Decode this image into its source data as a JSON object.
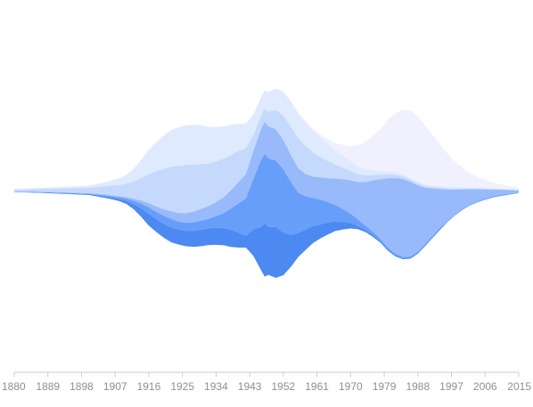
{
  "chart_data": {
    "type": "area",
    "subtype": "streamgraph",
    "x_tick_labels": [
      "1880",
      "1889",
      "1898",
      "1907",
      "1916",
      "1925",
      "1934",
      "1943",
      "1952",
      "1961",
      "1970",
      "1979",
      "1988",
      "1997",
      "2006",
      "2015"
    ],
    "xlim": [
      1880,
      2015
    ],
    "x": [
      1880,
      1890,
      1900,
      1905,
      1908,
      1910,
      1912,
      1914,
      1916,
      1918,
      1920,
      1922,
      1924,
      1926,
      1928,
      1930,
      1932,
      1934,
      1936,
      1938,
      1940,
      1942,
      1944,
      1946,
      1947,
      1948,
      1950,
      1952,
      1954,
      1956,
      1958,
      1960,
      1962,
      1964,
      1966,
      1968,
      1970,
      1972,
      1974,
      1976,
      1978,
      1980,
      1982,
      1984,
      1986,
      1988,
      1990,
      1992,
      1994,
      1996,
      1998,
      2000,
      2002,
      2004,
      2006,
      2008,
      2010,
      2012,
      2015
    ],
    "legend": "none",
    "grid": false,
    "colors": [
      "#3d7fef",
      "#5a96f8",
      "#8fb4fb",
      "#c0d6fd",
      "#dce8ff",
      "#efefff"
    ],
    "series": [
      {
        "values": [
          0.5,
          1,
          1.5,
          3,
          4,
          6,
          10,
          16,
          22,
          24,
          26,
          28,
          28,
          29,
          30,
          31,
          31,
          32,
          32,
          32,
          28,
          22,
          50,
          80,
          100,
          90,
          95,
          80,
          60,
          45,
          38,
          32,
          26,
          22,
          18,
          14,
          10,
          6,
          4,
          4,
          3,
          3,
          2,
          2,
          2,
          2,
          2,
          2,
          2,
          1,
          1,
          1,
          1,
          1,
          1,
          1,
          1,
          1,
          0.5
        ]
      },
      {
        "values": [
          0.5,
          1,
          1,
          2,
          3,
          4,
          6,
          9,
          12,
          14,
          15,
          16,
          15,
          15,
          16,
          17,
          18,
          22,
          28,
          40,
          55,
          70,
          95,
          125,
          130,
          128,
          125,
          118,
          100,
          75,
          62,
          52,
          46,
          38,
          30,
          24,
          18,
          12,
          8,
          6,
          4,
          3,
          3,
          2,
          2,
          2,
          2,
          2,
          2,
          1,
          1,
          1,
          1,
          1,
          1,
          1,
          1,
          1,
          0.5
        ]
      },
      {
        "values": [
          0.5,
          1,
          1,
          2,
          2,
          3,
          4,
          6,
          8,
          10,
          12,
          14,
          16,
          18,
          20,
          22,
          24,
          26,
          30,
          34,
          40,
          46,
          52,
          58,
          60,
          60,
          58,
          55,
          50,
          46,
          42,
          40,
          42,
          45,
          50,
          56,
          62,
          70,
          82,
          96,
          112,
          130,
          142,
          146,
          140,
          124,
          105,
          88,
          72,
          58,
          46,
          36,
          28,
          22,
          17,
          13,
          10,
          7,
          4
        ]
      },
      {
        "values": [
          3,
          6,
          10,
          16,
          21,
          25,
          32,
          42,
          55,
          66,
          76,
          84,
          88,
          90,
          88,
          84,
          80,
          76,
          72,
          66,
          58,
          48,
          30,
          25,
          25,
          28,
          36,
          46,
          54,
          56,
          52,
          45,
          38,
          32,
          26,
          22,
          18,
          15,
          12,
          10,
          8,
          7,
          6,
          5,
          4,
          4,
          3,
          3,
          3,
          3,
          2,
          2,
          2,
          2,
          2,
          1,
          1,
          1,
          1
        ]
      },
      {
        "values": [
          1,
          2,
          4,
          8,
          12,
          16,
          24,
          34,
          45,
          54,
          62,
          68,
          72,
          74,
          74,
          72,
          68,
          64,
          60,
          56,
          50,
          45,
          38,
          34,
          34,
          36,
          40,
          44,
          46,
          46,
          44,
          40,
          36,
          32,
          26,
          22,
          18,
          14,
          11,
          9,
          7,
          6,
          5,
          4,
          3,
          3,
          3,
          2,
          2,
          2,
          2,
          2,
          1,
          1,
          1,
          1,
          1,
          1,
          0.5
        ]
      },
      {
        "values": [
          0.5,
          0.5,
          0.5,
          0.5,
          0.5,
          0.5,
          0.5,
          0.5,
          0.5,
          0.5,
          0.5,
          0.5,
          0.5,
          0.5,
          0.5,
          0.5,
          0.5,
          0.5,
          0.5,
          1,
          1,
          1,
          1,
          1,
          1,
          1,
          1,
          1,
          1,
          2,
          3,
          4,
          6,
          9,
          14,
          20,
          28,
          40,
          52,
          64,
          78,
          96,
          110,
          120,
          126,
          122,
          110,
          94,
          78,
          62,
          48,
          36,
          27,
          20,
          15,
          11,
          8,
          6,
          4
        ]
      }
    ]
  }
}
